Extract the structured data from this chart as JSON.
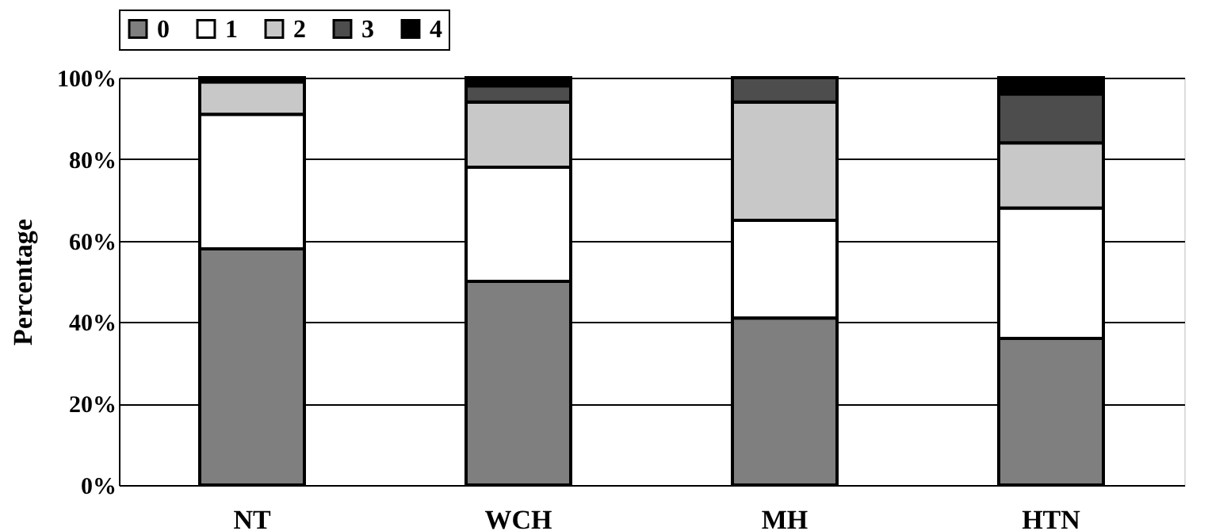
{
  "chart_data": {
    "type": "bar",
    "stacked": true,
    "ylabel": "Percentage",
    "categories": [
      "NT",
      "WCH",
      "MH",
      "HTN"
    ],
    "series": [
      {
        "name": "0",
        "color": "#7f7f7f",
        "values": [
          58,
          50,
          41,
          36
        ]
      },
      {
        "name": "1",
        "color": "#ffffff",
        "values": [
          33,
          28,
          24,
          32
        ]
      },
      {
        "name": "2",
        "color": "#c8c8c8",
        "values": [
          8,
          16,
          29,
          16
        ]
      },
      {
        "name": "3",
        "color": "#4d4d4d",
        "values": [
          0,
          4,
          6,
          12
        ]
      },
      {
        "name": "4",
        "color": "#000000",
        "values": [
          1,
          2,
          0,
          4
        ]
      }
    ],
    "ylim": [
      0,
      100
    ],
    "yticks": [
      {
        "value": 0,
        "label": "0%"
      },
      {
        "value": 20,
        "label": "20%"
      },
      {
        "value": 40,
        "label": "40%"
      },
      {
        "value": 60,
        "label": "60%"
      },
      {
        "value": 80,
        "label": "80%"
      },
      {
        "value": 100,
        "label": "100%"
      }
    ],
    "grid": "y",
    "legend": "top"
  }
}
